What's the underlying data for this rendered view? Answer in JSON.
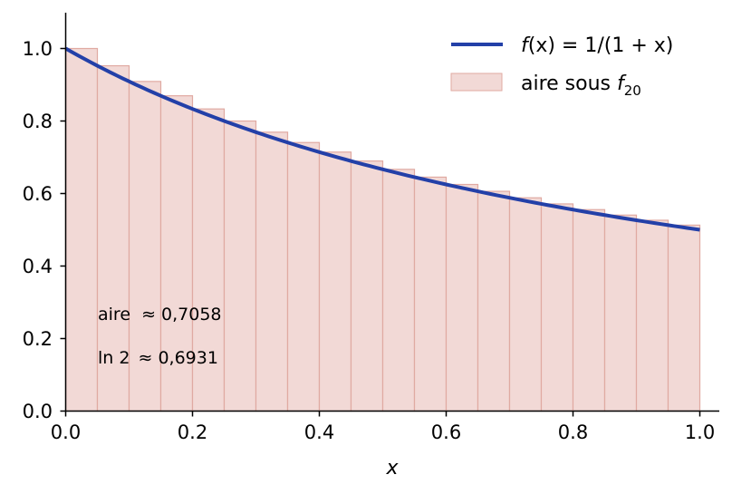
{
  "chart_data": {
    "type": "bar",
    "x_axis": {
      "label": "x",
      "ticks": [
        "0.0",
        "0.2",
        "0.4",
        "0.6",
        "0.8",
        "1.0"
      ],
      "tick_values": [
        0,
        0.2,
        0.4,
        0.6,
        0.8,
        1.0
      ],
      "range": [
        0,
        1.03
      ]
    },
    "y_axis": {
      "label": "",
      "ticks": [
        "0.0",
        "0.2",
        "0.4",
        "0.6",
        "0.8",
        "1.0"
      ],
      "tick_values": [
        0,
        0.2,
        0.4,
        0.6,
        0.8,
        1.0
      ],
      "range": [
        0,
        1.1
      ]
    },
    "grid": false,
    "bars": {
      "name": "aire sous f20",
      "width": 0.05,
      "x": [
        0,
        0.05,
        0.1,
        0.15,
        0.2,
        0.25,
        0.3,
        0.35,
        0.4,
        0.45,
        0.5,
        0.55,
        0.6,
        0.65,
        0.7,
        0.75,
        0.8,
        0.85,
        0.9,
        0.95
      ],
      "values": [
        1.0,
        0.9524,
        0.9091,
        0.8696,
        0.8333,
        0.8,
        0.7692,
        0.7407,
        0.7143,
        0.6897,
        0.6667,
        0.6452,
        0.625,
        0.6061,
        0.5882,
        0.5714,
        0.5556,
        0.5405,
        0.5263,
        0.5128
      ],
      "fill": "#f2d9d6",
      "stroke": "#e0aaa2"
    },
    "curve": {
      "name": "f(x) = 1/(1 + x)",
      "x_range": [
        0,
        1
      ],
      "samples": 101,
      "color": "#2340a8"
    },
    "legend": {
      "position": "top-right",
      "entries": [
        {
          "kind": "line",
          "prefix": "f",
          "rest": "(x) = 1/(1 + x)"
        },
        {
          "kind": "patch",
          "prefix": "aire sous ",
          "italic": "f",
          "sub": "20"
        }
      ]
    },
    "annotations": {
      "aire": {
        "label": "aire",
        "value": "≈ 0,7058"
      },
      "ln2": {
        "label": "ln 2",
        "value": "≈ 0,6931"
      }
    }
  }
}
